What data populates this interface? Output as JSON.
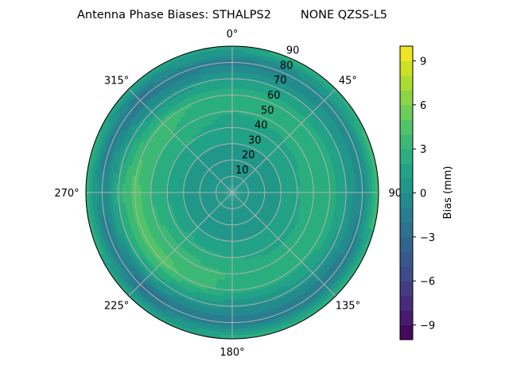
{
  "chart_data": {
    "type": "heatmap",
    "subtype": "polar-filled-contour",
    "title": "Antenna Phase Biases: STHALPS2        NONE QZSS-L5",
    "angular_ticks": [
      "0°",
      "45°",
      "90°",
      "135°",
      "180°",
      "225°",
      "270°",
      "315°"
    ],
    "angular_tick_values": [
      0,
      45,
      90,
      135,
      180,
      225,
      270,
      315
    ],
    "radial_ticks": [
      "10",
      "20",
      "30",
      "40",
      "50",
      "60",
      "70",
      "80",
      "90"
    ],
    "radial_tick_values": [
      10,
      20,
      30,
      40,
      50,
      60,
      70,
      80,
      90
    ],
    "radial_range": [
      0,
      90
    ],
    "angle_direction": "clockwise",
    "angle_zero": "north",
    "grid": true,
    "azimuth": [
      0,
      45,
      90,
      135,
      180,
      225,
      270,
      315
    ],
    "zenith": [
      0,
      10,
      20,
      30,
      40,
      50,
      60,
      70,
      80,
      90
    ],
    "values": [
      [
        0.5,
        0.5,
        0.5,
        1,
        1.5,
        2,
        2.5,
        1,
        -1.5,
        2
      ],
      [
        0.5,
        0.5,
        0.5,
        1,
        1.5,
        2.5,
        2.5,
        1,
        -1,
        3
      ],
      [
        0.5,
        0.5,
        0.5,
        1,
        2,
        2.5,
        3,
        1,
        -1,
        4
      ],
      [
        0.5,
        0.5,
        0.5,
        1,
        1.5,
        2.5,
        2.5,
        0.5,
        -2,
        2.5
      ],
      [
        0.5,
        0.5,
        0.5,
        1,
        2,
        3,
        2.5,
        0,
        -2,
        2.5
      ],
      [
        0.5,
        0.5,
        0.5,
        1,
        2.5,
        3.5,
        4.5,
        1.5,
        -2.5,
        2
      ],
      [
        0.5,
        0.5,
        0.5,
        1,
        2,
        3,
        4.5,
        2.5,
        -1,
        3
      ],
      [
        0.5,
        0.5,
        0.5,
        1,
        2,
        3,
        3.5,
        0.5,
        -2.5,
        2
      ]
    ],
    "colorbar": {
      "label": "Bias (mm)",
      "range": [
        -10,
        10
      ],
      "level_step": 1,
      "ticks": [
        "−9",
        "−6",
        "−3",
        "0",
        "3",
        "6",
        "9"
      ],
      "tick_values": [
        -9,
        -6,
        -3,
        0,
        3,
        6,
        9
      ],
      "colormap": "viridis"
    }
  }
}
